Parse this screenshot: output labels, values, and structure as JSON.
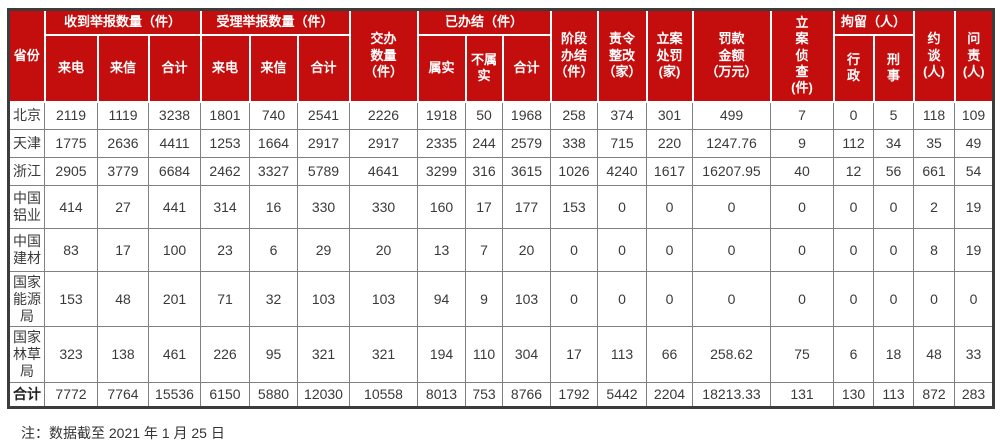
{
  "colors": {
    "header_bg": "#c40e0e",
    "header_text": "#ffffff",
    "body_text": "#3a3a3a",
    "grid_border": "#808080",
    "outer_border": "#3c3c3c"
  },
  "chart_data": {
    "type": "table",
    "title": "",
    "header": {
      "province": "省份",
      "received_group": "收到举报数量（件）",
      "accepted_group": "受理举报数量（件）",
      "assigned": "交办\n数量\n（件）",
      "completed_group": "已办结（件）",
      "stage_completed": "阶段\n办结\n（件）",
      "ordered_rectification": "责令\n整改\n（家）",
      "filed_penalty": "立案\n处罚\n(家)",
      "fine_amount": "罚款\n金额\n（万元）",
      "filed_investigation": "立\n案\n侦\n查\n(件)",
      "detention_group": "拘留（人）",
      "interview": "约\n谈\n(人)",
      "accountability": "问\n责\n(人)",
      "subheaders": [
        "来电",
        "来信",
        "合计",
        "来电",
        "来信",
        "合计",
        "属实",
        "不属\n实",
        "合计",
        "行\n政",
        "刑\n事"
      ]
    },
    "rows": [
      {
        "label": "北京",
        "values": [
          "2119",
          "1119",
          "3238",
          "1801",
          "740",
          "2541",
          "2226",
          "1918",
          "50",
          "1968",
          "258",
          "374",
          "301",
          "499",
          "7",
          "0",
          "5",
          "118",
          "109"
        ]
      },
      {
        "label": "天津",
        "values": [
          "1775",
          "2636",
          "4411",
          "1253",
          "1664",
          "2917",
          "2917",
          "2335",
          "244",
          "2579",
          "338",
          "715",
          "220",
          "1247.76",
          "9",
          "112",
          "34",
          "35",
          "49"
        ]
      },
      {
        "label": "浙江",
        "values": [
          "2905",
          "3779",
          "6684",
          "2462",
          "3327",
          "5789",
          "4641",
          "3299",
          "316",
          "3615",
          "1026",
          "4240",
          "1617",
          "16207.95",
          "40",
          "12",
          "56",
          "661",
          "54"
        ]
      },
      {
        "label": "中国\n铝业",
        "values": [
          "414",
          "27",
          "441",
          "314",
          "16",
          "330",
          "330",
          "160",
          "17",
          "177",
          "153",
          "0",
          "0",
          "0",
          "0",
          "0",
          "0",
          "2",
          "19"
        ]
      },
      {
        "label": "中国\n建材",
        "values": [
          "83",
          "17",
          "100",
          "23",
          "6",
          "29",
          "20",
          "13",
          "7",
          "20",
          "0",
          "0",
          "0",
          "0",
          "0",
          "0",
          "0",
          "8",
          "19"
        ]
      },
      {
        "label": "国家\n能源\n局",
        "values": [
          "153",
          "48",
          "201",
          "71",
          "32",
          "103",
          "103",
          "94",
          "9",
          "103",
          "0",
          "0",
          "0",
          "0",
          "0",
          "0",
          "0",
          "0",
          "0"
        ]
      },
      {
        "label": "国家\n林草\n局",
        "values": [
          "323",
          "138",
          "461",
          "226",
          "95",
          "321",
          "321",
          "194",
          "110",
          "304",
          "17",
          "113",
          "66",
          "258.62",
          "75",
          "6",
          "18",
          "48",
          "33"
        ]
      }
    ],
    "total_row": {
      "label": "合计",
      "values": [
        "7772",
        "7764",
        "15536",
        "6150",
        "5880",
        "12030",
        "10558",
        "8013",
        "753",
        "8766",
        "1792",
        "5442",
        "2204",
        "18213.33",
        "131",
        "130",
        "113",
        "872",
        "283"
      ]
    },
    "note": "注：数据截至 2021 年 1 月 25 日"
  }
}
